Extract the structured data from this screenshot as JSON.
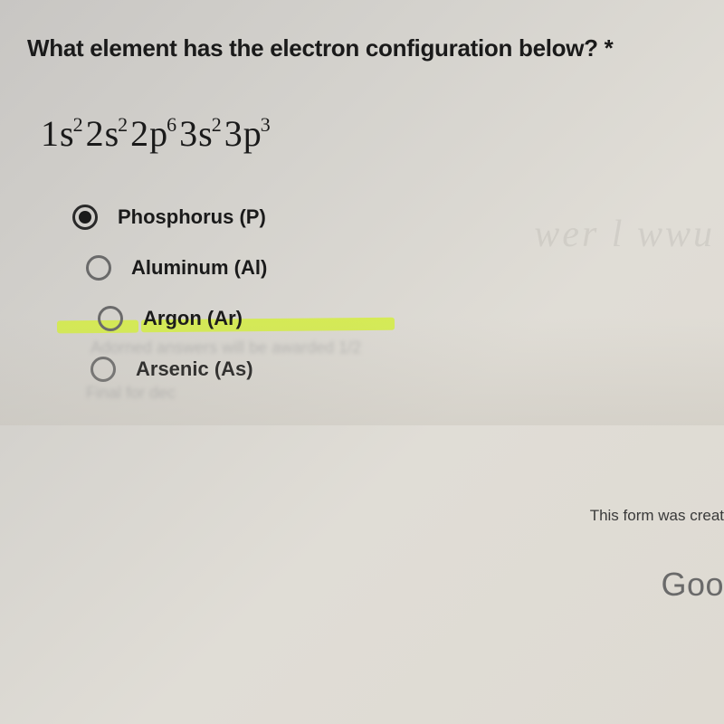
{
  "question": {
    "text": "What element has the electron configuration below? *",
    "formula_parts": [
      {
        "base": "1s",
        "sup": "2"
      },
      {
        "base": "2s",
        "sup": "2"
      },
      {
        "base": "2p",
        "sup": "6"
      },
      {
        "base": "3s",
        "sup": "2"
      },
      {
        "base": "3p",
        "sup": "3"
      }
    ]
  },
  "options": [
    {
      "label": "Phosphorus (P)",
      "selected": true,
      "highlighted": false,
      "indent_class": ""
    },
    {
      "label": "Aluminum (Al)",
      "selected": false,
      "highlighted": false,
      "indent_class": "indent-2"
    },
    {
      "label": "Argon (Ar)",
      "selected": false,
      "highlighted": true,
      "indent_class": "indent-3"
    },
    {
      "label": "Arsenic (As)",
      "selected": false,
      "highlighted": false,
      "indent_class": "indent-4"
    }
  ],
  "footer": {
    "form_text": "This form was creat",
    "brand": "Goo"
  },
  "colors": {
    "highlight": "#d4ed3f",
    "text": "#1a1a1a",
    "radio_border": "#4a4a4a",
    "background_start": "#c8c6c3",
    "background_end": "#dedad2"
  }
}
